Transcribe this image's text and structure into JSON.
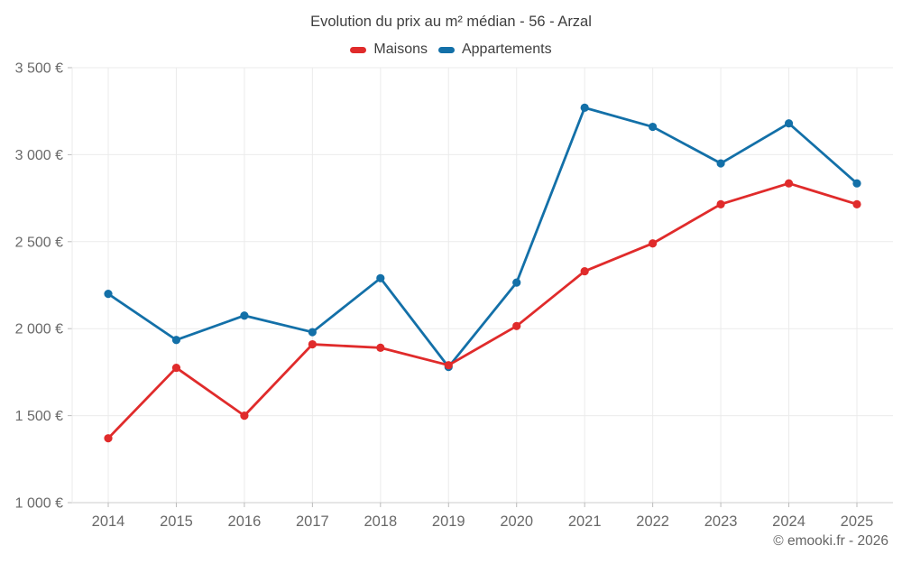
{
  "header": {
    "title": "Evolution du prix au m² médian - 56 - Arzal"
  },
  "attribution": "© emooki.fr - 2026",
  "chart_data": {
    "type": "line",
    "title": "Evolution du prix au m² médian - 56 - Arzal",
    "x": [
      2014,
      2015,
      2016,
      2017,
      2018,
      2019,
      2020,
      2021,
      2022,
      2023,
      2024,
      2025
    ],
    "series": [
      {
        "name": "Maisons",
        "color": "#e02b2b",
        "values": [
          1370,
          1775,
          1500,
          1910,
          1890,
          1790,
          2015,
          2330,
          2490,
          2715,
          2835,
          2715
        ]
      },
      {
        "name": "Appartements",
        "color": "#1370a8",
        "values": [
          2200,
          1935,
          2075,
          1980,
          2290,
          1780,
          2265,
          3270,
          3160,
          2950,
          3180,
          2835
        ]
      }
    ],
    "ylim": [
      1000,
      3500
    ],
    "y_ticks": [
      1000,
      1500,
      2000,
      2500,
      3000,
      3500
    ],
    "y_tick_labels": [
      "1 000 €",
      "1 500 €",
      "2 000 €",
      "2 500 €",
      "3 000 €",
      "3 500 €"
    ],
    "currency_suffix": "€",
    "grid": true,
    "legend_position": "top",
    "colors": {
      "gridline": "#ebebeb",
      "axis_line": "#cccccc",
      "tick": "#bbbbbb",
      "tick_label": "#696969"
    }
  }
}
